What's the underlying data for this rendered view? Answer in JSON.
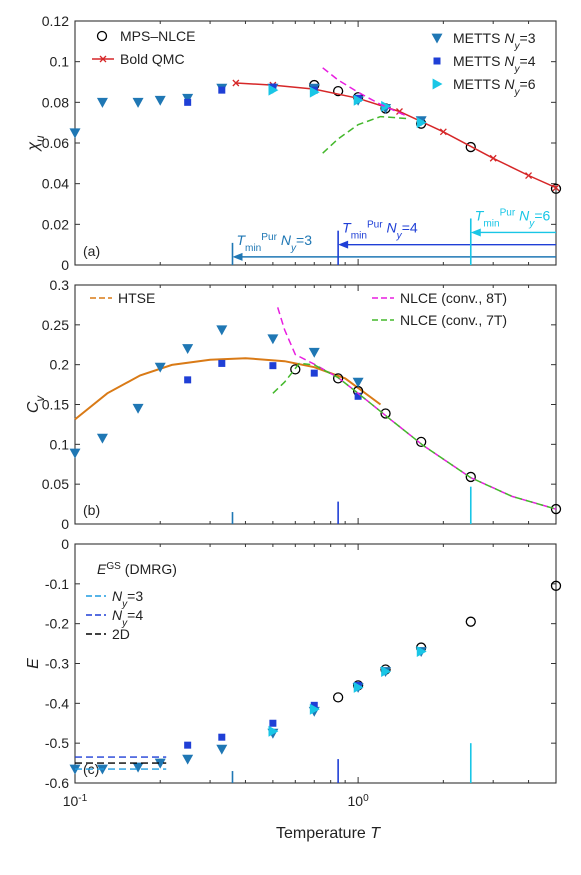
{
  "xlabel": "Temperature T",
  "chart_data": [
    {
      "type": "scatter",
      "panel_label": "(a)",
      "ylabel": "χ_u",
      "ylim": [
        0,
        0.12
      ],
      "yticks": [
        "0",
        "0.02",
        "0.04",
        "0.06",
        "0.08",
        "0.1",
        "0.12"
      ],
      "xscale": "log",
      "xlim": [
        0.1,
        5
      ],
      "series": [
        {
          "name": "MPS–NLCE",
          "marker": "circle",
          "color": "#000000",
          "x": [
            0.7,
            0.85,
            1.0,
            1.25,
            1.67,
            2.5,
            5.0
          ],
          "y": [
            0.0885,
            0.0855,
            0.0825,
            0.077,
            0.0695,
            0.058,
            0.0375
          ]
        },
        {
          "name": "Bold QMC",
          "marker": "x-line",
          "color": "#d62728",
          "x": [
            0.37,
            0.5,
            0.7,
            1.0,
            1.4,
            2.0,
            3.0,
            4.0,
            5.0
          ],
          "y": [
            0.0895,
            0.0885,
            0.0865,
            0.082,
            0.0755,
            0.0655,
            0.0525,
            0.044,
            0.038
          ]
        },
        {
          "name": "METTS N_y=3",
          "marker": "triangle-down",
          "color": "#1f77b4",
          "x": [
            0.1,
            0.125,
            0.167,
            0.2,
            0.25,
            0.33,
            0.5,
            0.7,
            1.0,
            1.25,
            1.67
          ],
          "y": [
            0.065,
            0.08,
            0.08,
            0.081,
            0.082,
            0.087,
            0.087,
            0.087,
            0.081,
            0.077,
            0.071
          ]
        },
        {
          "name": "METTS N_y=4",
          "marker": "square",
          "color": "#1f3fd6",
          "x": [
            0.25,
            0.33,
            0.5,
            0.7,
            1.0
          ],
          "y": [
            0.08,
            0.086,
            0.0875,
            0.086,
            0.082
          ]
        },
        {
          "name": "METTS N_y=6",
          "marker": "triangle-right",
          "color": "#19c6e6",
          "x": [
            0.5,
            0.7,
            1.0,
            1.25,
            1.67
          ],
          "y": [
            0.086,
            0.085,
            0.081,
            0.078,
            0.07
          ]
        },
        {
          "name": "NLCE (conv., 8T)",
          "marker": "dash",
          "color": "#e81ee0",
          "x": [
            0.75,
            0.85,
            1.0,
            1.2,
            1.5
          ],
          "y": [
            0.097,
            0.091,
            0.085,
            0.079,
            0.073
          ]
        },
        {
          "name": "NLCE (conv., 7T)",
          "marker": "dash",
          "color": "#44b82c",
          "x": [
            0.75,
            0.85,
            1.0,
            1.2,
            1.5
          ],
          "y": [
            0.055,
            0.062,
            0.069,
            0.073,
            0.072
          ]
        }
      ],
      "legend_left": [
        "MPS–NLCE",
        "Bold QMC"
      ],
      "legend_right": [
        {
          "text": "METTS ",
          "sym": "N",
          "sub": "y",
          "tail": "=3"
        },
        {
          "text": "METTS ",
          "sym": "N",
          "sub": "y",
          "tail": "=4"
        },
        {
          "text": "METTS ",
          "sym": "N",
          "sub": "y",
          "tail": "=6"
        }
      ],
      "tmin_annotations": [
        {
          "label_T": "T",
          "label_sub": "min",
          "label_sup": "Pur",
          "label_n": "N",
          "label_nsub": "y",
          "label_tail": "=3",
          "x": 0.36,
          "color": "#1f77b4",
          "arrow_y": 0.004
        },
        {
          "label_T": "T",
          "label_sub": "min",
          "label_sup": "Pur",
          "label_n": "N",
          "label_nsub": "y",
          "label_tail": "=4",
          "x": 0.85,
          "color": "#1f3fd6",
          "arrow_y": 0.01
        },
        {
          "label_T": "T",
          "label_sub": "min",
          "label_sup": "Pur",
          "label_n": "N",
          "label_nsub": "y",
          "label_tail": "=6",
          "x": 2.5,
          "color": "#19c6e6",
          "arrow_y": 0.016
        }
      ]
    },
    {
      "type": "scatter",
      "panel_label": "(b)",
      "ylabel": "C_v",
      "ylim": [
        0,
        0.32
      ],
      "yticks": [
        "0",
        "0.05",
        "0.1",
        "0.15",
        "0.2",
        "0.25",
        "0.3"
      ],
      "xscale": "log",
      "xlim": [
        0.1,
        5
      ],
      "series": [
        {
          "name": "HTSE",
          "marker": "line",
          "color": "#d97a16",
          "x": [
            0.1,
            0.13,
            0.17,
            0.22,
            0.3,
            0.4,
            0.55,
            0.7,
            0.9,
            1.2
          ],
          "y": [
            0.14,
            0.175,
            0.199,
            0.213,
            0.22,
            0.222,
            0.218,
            0.21,
            0.195,
            0.16
          ]
        },
        {
          "name": "MPS–NLCE",
          "marker": "circle",
          "color": "#000000",
          "x": [
            0.6,
            0.85,
            1.0,
            1.25,
            1.67,
            2.5,
            5.0
          ],
          "y": [
            0.207,
            0.195,
            0.178,
            0.148,
            0.11,
            0.063,
            0.02
          ]
        },
        {
          "name": "METTS N_y=3",
          "marker": "triangle-down",
          "color": "#1f77b4",
          "x": [
            0.1,
            0.125,
            0.167,
            0.2,
            0.25,
            0.33,
            0.5,
            0.7,
            1.0
          ],
          "y": [
            0.095,
            0.115,
            0.155,
            0.21,
            0.235,
            0.26,
            0.248,
            0.23,
            0.19
          ]
        },
        {
          "name": "METTS N_y=4",
          "marker": "square",
          "color": "#1f3fd6",
          "x": [
            0.25,
            0.33,
            0.5,
            0.7,
            1.0
          ],
          "y": [
            0.193,
            0.215,
            0.212,
            0.202,
            0.171
          ]
        },
        {
          "name": "NLCE (conv., 8T)",
          "marker": "dash",
          "color": "#e81ee0",
          "x": [
            0.52,
            0.55,
            0.6,
            0.7,
            0.85,
            1.0,
            1.3,
            1.7,
            2.5,
            3.5,
            5.0
          ],
          "y": [
            0.29,
            0.26,
            0.227,
            0.214,
            0.196,
            0.175,
            0.14,
            0.105,
            0.062,
            0.037,
            0.02
          ]
        },
        {
          "name": "NLCE (conv., 7T)",
          "marker": "dash",
          "color": "#44b82c",
          "x": [
            0.5,
            0.55,
            0.62,
            0.7,
            0.85,
            1.0,
            1.3,
            1.7,
            2.5,
            3.5,
            5.0
          ],
          "y": [
            0.175,
            0.19,
            0.215,
            0.213,
            0.196,
            0.175,
            0.14,
            0.105,
            0.062,
            0.037,
            0.02
          ]
        }
      ],
      "legend_left": [
        "HTSE"
      ],
      "legend_right_text": [
        "NLCE (conv., 8T)",
        "NLCE (conv., 7T)"
      ],
      "tmin_ticks": [
        {
          "x": 0.36,
          "color": "#1f77b4",
          "h": 0.016
        },
        {
          "x": 0.85,
          "color": "#1f3fd6",
          "h": 0.03
        },
        {
          "x": 2.5,
          "color": "#19c6e6",
          "h": 0.05
        }
      ]
    },
    {
      "type": "scatter",
      "panel_label": "(c)",
      "ylabel": "E",
      "ylim": [
        -0.6,
        0
      ],
      "yticks": [
        "-0.6",
        "-0.5",
        "-0.4",
        "-0.3",
        "-0.2",
        "-0.1",
        "0"
      ],
      "xscale": "log",
      "xlim": [
        0.1,
        5
      ],
      "xticks": [
        "10",
        "10"
      ],
      "xtick_exps": [
        "-1",
        "0"
      ],
      "series": [
        {
          "name": "MPS–NLCE",
          "marker": "circle",
          "color": "#000000",
          "x": [
            0.85,
            1.0,
            1.25,
            1.67,
            2.5,
            5.0
          ],
          "y": [
            -0.385,
            -0.355,
            -0.315,
            -0.26,
            -0.195,
            -0.105
          ]
        },
        {
          "name": "METTS N_y=3",
          "marker": "triangle-down",
          "color": "#1f77b4",
          "x": [
            0.1,
            0.125,
            0.167,
            0.2,
            0.25,
            0.33,
            0.5,
            0.7,
            1.0,
            1.25,
            1.67
          ],
          "y": [
            -0.565,
            -0.565,
            -0.56,
            -0.55,
            -0.54,
            -0.515,
            -0.475,
            -0.42,
            -0.36,
            -0.32,
            -0.27
          ]
        },
        {
          "name": "METTS N_y=4",
          "marker": "square",
          "color": "#1f3fd6",
          "x": [
            0.25,
            0.33,
            0.5,
            0.7,
            1.0
          ],
          "y": [
            -0.505,
            -0.485,
            -0.45,
            -0.405,
            -0.355
          ]
        },
        {
          "name": "METTS N_y=6",
          "marker": "triangle-right",
          "color": "#19c6e6",
          "x": [
            0.5,
            0.7,
            1.0,
            1.25,
            1.67
          ],
          "y": [
            -0.47,
            -0.415,
            -0.36,
            -0.32,
            -0.27
          ]
        }
      ],
      "gs_lines": [
        {
          "name": "N_y=3",
          "color": "#1f9be0",
          "y": -0.565
        },
        {
          "name": "N_y=4",
          "color": "#1f3fd6",
          "y": -0.535
        },
        {
          "name": "2D",
          "color": "#000000",
          "y": -0.55
        }
      ],
      "legend_title": {
        "E": "E",
        "sup": "GS",
        "tail": " (DMRG)"
      },
      "legend_entries": [
        {
          "sym": "N",
          "sub": "y",
          "tail": "=3"
        },
        {
          "sym": "N",
          "sub": "y",
          "tail": "=4"
        },
        {
          "sym": "",
          "sub": "",
          "tail": "2D"
        }
      ],
      "tmin_ticks": [
        {
          "x": 0.36,
          "color": "#1f77b4",
          "h": 0.03
        },
        {
          "x": 0.85,
          "color": "#1f3fd6",
          "h": 0.06
        },
        {
          "x": 2.5,
          "color": "#19c6e6",
          "h": 0.1
        }
      ]
    }
  ]
}
